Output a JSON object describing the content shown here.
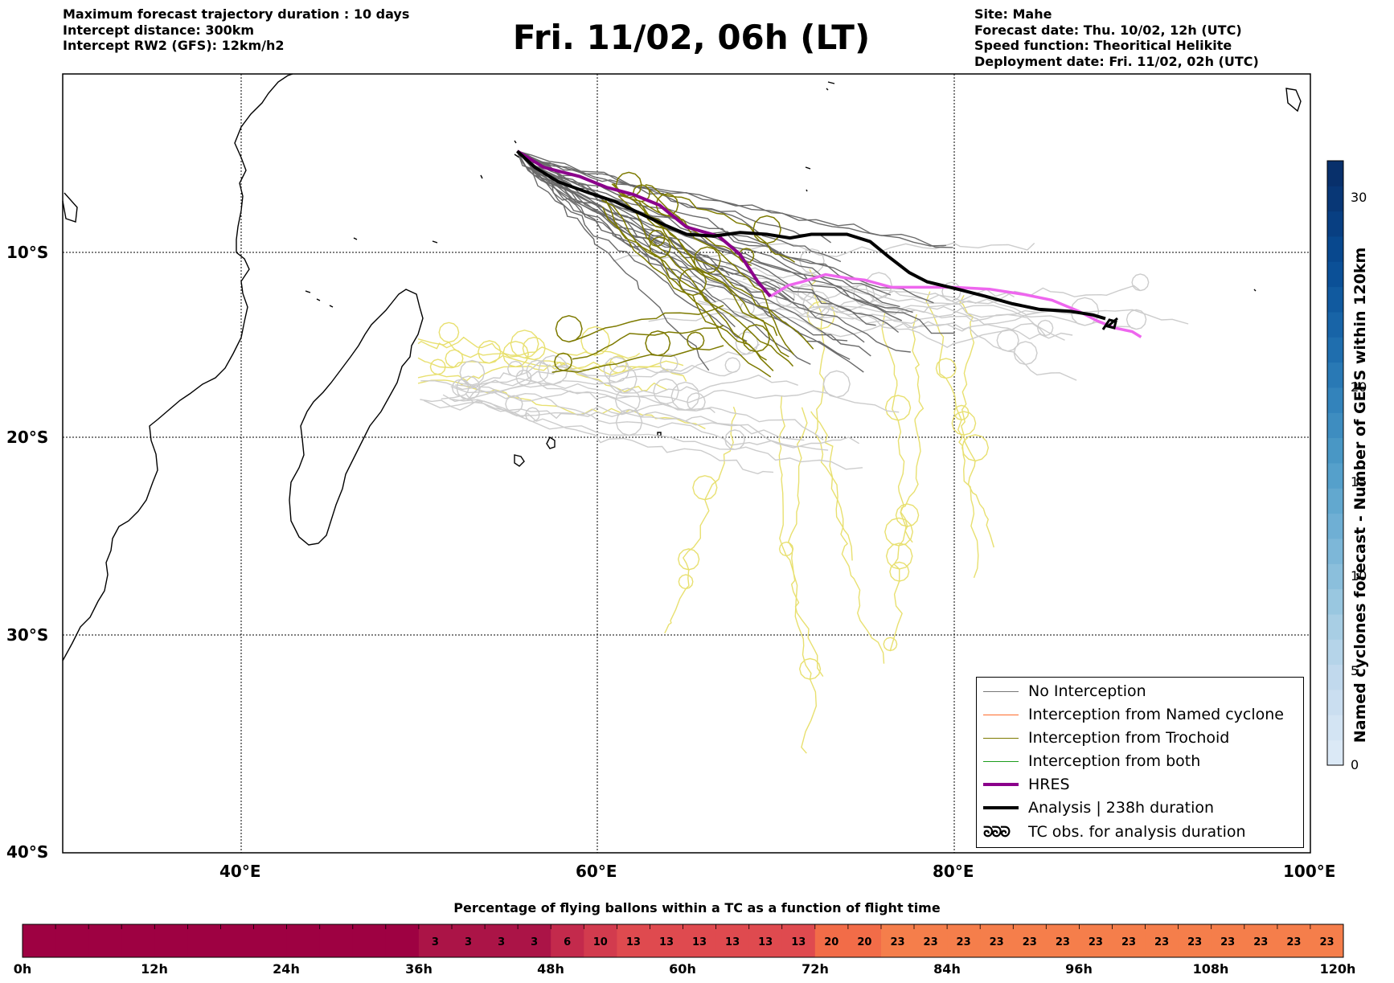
{
  "header": {
    "left": [
      "Maximum forecast trajectory duration : 10 days",
      "Intercept distance: 300km",
      "Intercept RW2 (GFS):  12km/h2"
    ],
    "title": "Fri. 11/02, 06h (LT)",
    "right": [
      "Site: Mahe",
      "Forecast date: Thu. 10/02, 12h (UTC)",
      "Speed function: Theoritical Helikite",
      "Deployment date: Fri. 11/02, 02h (UTC)"
    ]
  },
  "map": {
    "lat_labels": [
      "10°S",
      "20°S",
      "30°S",
      "40°S"
    ],
    "lon_labels": [
      "40°E",
      "60°E",
      "80°E",
      "100°E"
    ],
    "lon_range": [
      30,
      100
    ],
    "lat_range": [
      -40,
      -0.3
    ],
    "hres_track": [
      [
        55.5,
        -4.6
      ],
      [
        57,
        -5.5
      ],
      [
        59,
        -6.0
      ],
      [
        60.5,
        -6.6
      ],
      [
        62,
        -7.0
      ],
      [
        63.5,
        -7.6
      ],
      [
        65,
        -8.8
      ],
      [
        66.8,
        -9.3
      ],
      [
        68,
        -10.3
      ],
      [
        69,
        -11.8
      ],
      [
        69.7,
        -12.6
      ],
      [
        70.7,
        -12.0
      ],
      [
        71.5,
        -11.8
      ],
      [
        72.8,
        -11.4
      ],
      [
        74,
        -11.6
      ],
      [
        75,
        -11.7
      ],
      [
        76.5,
        -12.1
      ],
      [
        78,
        -12.1
      ],
      [
        80,
        -12.1
      ],
      [
        82,
        -12.2
      ],
      [
        84,
        -12.5
      ],
      [
        85.5,
        -12.8
      ],
      [
        87,
        -13.4
      ],
      [
        88,
        -13.9
      ],
      [
        89,
        -14.3
      ],
      [
        90,
        -14.5
      ],
      [
        90.5,
        -14.8
      ]
    ],
    "analysis_track": [
      [
        55.5,
        -4.6
      ],
      [
        56.5,
        -5.5
      ],
      [
        57.8,
        -6.3
      ],
      [
        59.5,
        -6.9
      ],
      [
        61,
        -7.4
      ],
      [
        62.5,
        -8.1
      ],
      [
        63.8,
        -8.7
      ],
      [
        65,
        -9.2
      ],
      [
        66.5,
        -9.3
      ],
      [
        68,
        -9.1
      ],
      [
        69.5,
        -9.2
      ],
      [
        70.8,
        -9.4
      ],
      [
        72,
        -9.2
      ],
      [
        74,
        -9.2
      ],
      [
        75.3,
        -9.6
      ],
      [
        76.3,
        -10.4
      ],
      [
        77.5,
        -11.3
      ],
      [
        78.5,
        -11.8
      ],
      [
        80.2,
        -12.2
      ],
      [
        81.8,
        -12.6
      ],
      [
        83.3,
        -13.0
      ],
      [
        84.8,
        -13.3
      ],
      [
        86.5,
        -13.4
      ],
      [
        87.8,
        -13.6
      ],
      [
        88.5,
        -13.8
      ]
    ]
  },
  "legend": {
    "items": [
      {
        "label": "No Interception",
        "color": "#777777"
      },
      {
        "label": "Interception from Named cyclone",
        "color": "#ff6a2a"
      },
      {
        "label": "Interception from Trochoid",
        "color": "#7d7a00"
      },
      {
        "label": "Interception from both",
        "color": "#1c9c1c"
      },
      {
        "label": "HRES",
        "color": "#8b008b"
      },
      {
        "label": "Analysis | 238h duration",
        "color": "#000000"
      },
      {
        "label": "TC obs. for analysis duration",
        "icon": "tc-symbol"
      }
    ],
    "tc_symbol": "ᘐᘐᘐ"
  },
  "colorbar": {
    "title": "Named cyclones forecast - Number of GEFS within 120km",
    "ticks": [
      0,
      5,
      10,
      15,
      20,
      30
    ],
    "range": [
      0,
      32
    ]
  },
  "flight_bar": {
    "title": "Percentage of flying ballons within a TC as a function of flight time",
    "time_labels": [
      "0h",
      "12h",
      "24h",
      "36h",
      "48h",
      "60h",
      "72h",
      "84h",
      "96h",
      "108h",
      "120h"
    ],
    "cells": [
      "",
      "",
      "",
      "",
      "",
      "",
      "",
      "",
      "",
      "",
      "",
      "",
      "3",
      "3",
      "3",
      "3",
      "6",
      "10",
      "13",
      "13",
      "13",
      "13",
      "13",
      "13",
      "20",
      "20",
      "23",
      "23",
      "23",
      "23",
      "23",
      "23",
      "23",
      "23",
      "23",
      "23",
      "23",
      "23",
      "23",
      "23"
    ]
  },
  "colors": {
    "cell_0": "#9e0142",
    "cell_3": "#ab1447",
    "cell_6": "#c32a4c",
    "cell_10": "#d23b4e",
    "cell_13": "#df4a4f",
    "cell_20": "#f26c48",
    "cell_23": "#f57e4b",
    "trochoid": "#7d7a00",
    "yellow_members": "#e8e070",
    "grey_members": "#cccccc",
    "dark_members": "#666666",
    "hres": "#8b008b",
    "hres_tail": "#ee66ee"
  }
}
